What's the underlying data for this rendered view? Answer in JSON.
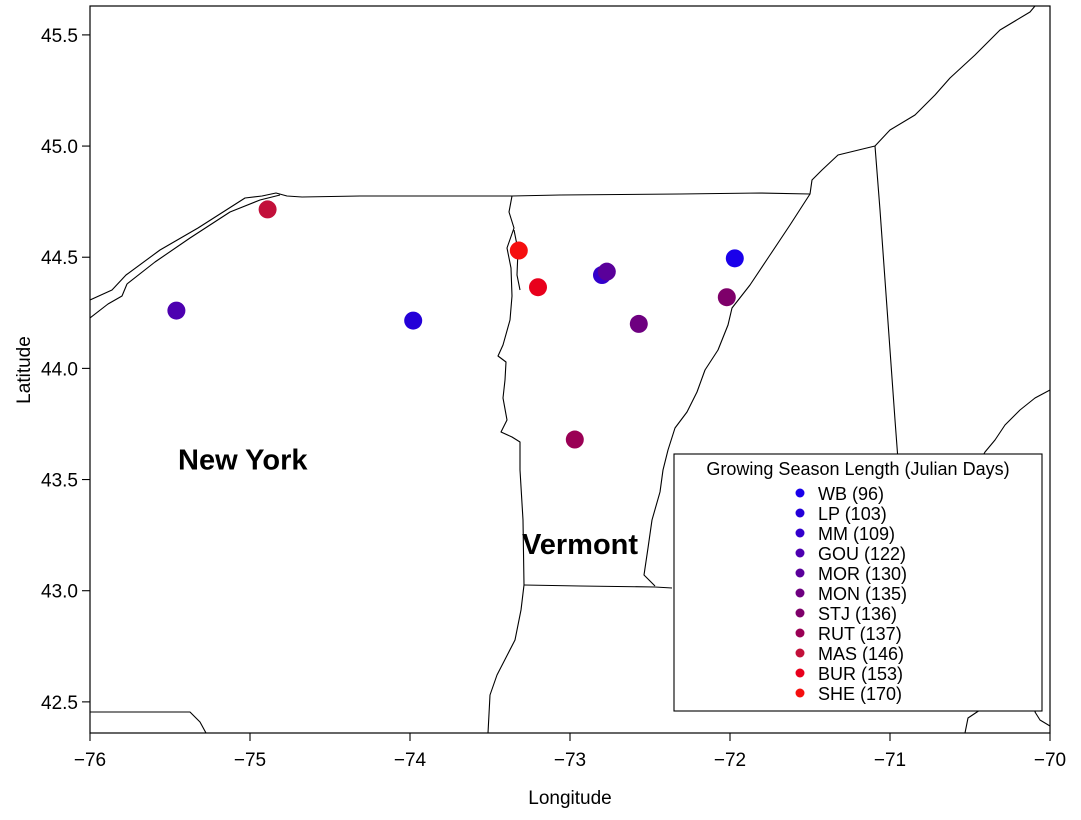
{
  "chart_data": {
    "type": "scatter",
    "title": "",
    "xlabel": "Longitude",
    "ylabel": "Latitude",
    "xlim": [
      -76,
      -70
    ],
    "ylim": [
      42.36,
      45.63
    ],
    "x_ticks": [
      -76,
      -75,
      -74,
      -73,
      -72,
      -71,
      -70
    ],
    "x_tick_labels": [
      "−76",
      "−75",
      "−74",
      "−73",
      "−72",
      "−71",
      "−70"
    ],
    "y_ticks": [
      42.5,
      43.0,
      43.5,
      44.0,
      44.5,
      45.0,
      45.5
    ],
    "y_tick_labels": [
      "42.5",
      "43.0",
      "43.5",
      "44.0",
      "44.5",
      "45.0",
      "45.5"
    ],
    "grid": false,
    "legend_title": "Growing Season Length (Julian Days)",
    "legend_position": "bottom-right",
    "region_labels": [
      {
        "text": "New York",
        "lon": -75.45,
        "lat": 43.59
      },
      {
        "text": "Vermont",
        "lon": -73.3,
        "lat": 43.21
      }
    ],
    "points": [
      {
        "label": "WB (96)",
        "lon": -71.97,
        "lat": 44.495,
        "color": "#1a00ea"
      },
      {
        "label": "LP (103)",
        "lon": -73.98,
        "lat": 44.215,
        "color": "#2400d8"
      },
      {
        "label": "MM (109)",
        "lon": -72.8,
        "lat": 44.42,
        "color": "#3300cc"
      },
      {
        "label": "GOU (122)",
        "lon": -75.46,
        "lat": 44.26,
        "color": "#4d00b0"
      },
      {
        "label": "MOR (130)",
        "lon": -72.77,
        "lat": 44.435,
        "color": "#5a009a"
      },
      {
        "label": "MON (135)",
        "lon": -72.57,
        "lat": 44.2,
        "color": "#6e0080"
      },
      {
        "label": "STJ (136)",
        "lon": -72.02,
        "lat": 44.32,
        "color": "#7e006a"
      },
      {
        "label": "RUT (137)",
        "lon": -72.97,
        "lat": 43.68,
        "color": "#9a0055"
      },
      {
        "label": "MAS (146)",
        "lon": -74.89,
        "lat": 44.715,
        "color": "#c2103a"
      },
      {
        "label": "BUR (153)",
        "lon": -73.2,
        "lat": 44.365,
        "color": "#e8001c"
      },
      {
        "label": "SHE (170)",
        "lon": -73.32,
        "lat": 44.53,
        "color": "#f50f0f"
      }
    ]
  }
}
